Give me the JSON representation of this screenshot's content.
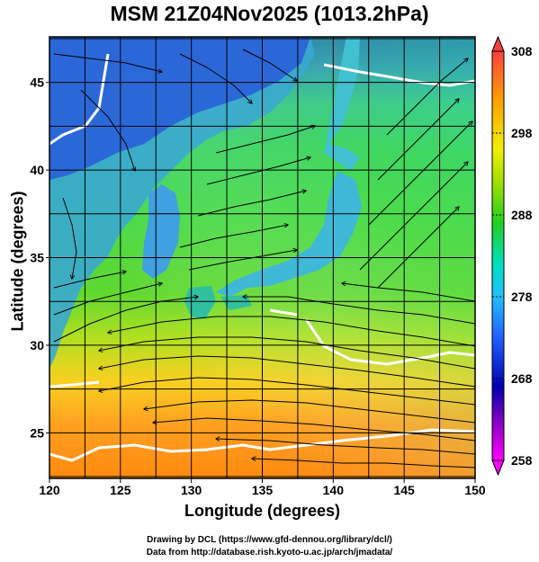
{
  "title": "MSM 21Z04Nov2025 (1013.2hPa)",
  "xlabel": "Longitude (degrees)",
  "ylabel": "Latitude  (degrees)",
  "credits": [
    "Drawing by DCL (https://www.gfd-dennou.org/library/dcl/)",
    "Data from http://database.rish.kyoto-u.ac.jp/arch/jmadata/"
  ],
  "map": {
    "lon_range": [
      120,
      150
    ],
    "lat_range": [
      22.4,
      47.6
    ],
    "lon_ticks": [
      "120",
      "125",
      "130",
      "135",
      "140",
      "145",
      "150"
    ],
    "lat_ticks": [
      "25",
      "30",
      "35",
      "40",
      "45"
    ],
    "grid": true,
    "grid_interval_deg": 2.5
  },
  "colorbar": {
    "min": 258,
    "max": 308,
    "labels": [
      "308",
      "298",
      "288",
      "278",
      "268",
      "258"
    ],
    "stops": [
      "#ff00ff",
      "#0000b0",
      "#2060ff",
      "#20c0ff",
      "#00e0c0",
      "#20d020",
      "#a0e000",
      "#f0f000",
      "#ffa000",
      "#ff4040"
    ]
  },
  "colors": {
    "ocean_south": "#ff9a20",
    "ocean_mid": "#80e020",
    "land": "#20c050",
    "north": "#3070e0",
    "streamline": "#000000",
    "contour": "#ffffff"
  }
}
